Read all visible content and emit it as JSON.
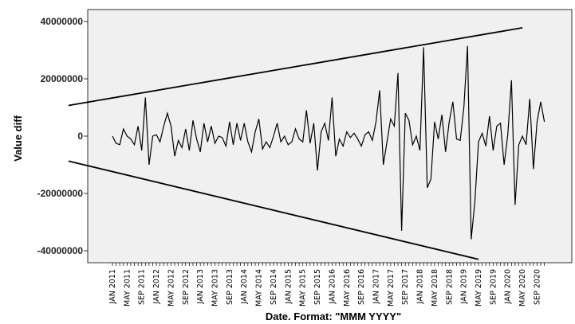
{
  "chart_data": {
    "type": "line",
    "title": "",
    "xlabel": "Date.  Format:  \"MMM YYYY\"",
    "ylabel": "Value diff",
    "ylim": [
      -45000000,
      45000000
    ],
    "yticks": [
      40000000,
      20000000,
      0,
      -20000000,
      -40000000
    ],
    "ytick_labels": [
      "40000000",
      "20000000",
      "0",
      "-20000000",
      "-40000000"
    ],
    "x_start": "JAN 2011",
    "x_tick_labels": [
      "JAN 2011",
      "MAY 2011",
      "SEP 2011",
      "JAN 2012",
      "MAY 2012",
      "SEP 2012",
      "JAN 2013",
      "MAY 2013",
      "SEP 2013",
      "JAN 2014",
      "MAY 2014",
      "SEP 2014",
      "JAN 2015",
      "MAY 2015",
      "SEP 2015",
      "JAN 2016",
      "MAY 2016",
      "SEP 2016",
      "JAN 2017",
      "MAY 2017",
      "SEP 2017",
      "JAN 2018",
      "MAY 2018",
      "SEP 2018",
      "JAN 2019",
      "MAY 2019",
      "SEP 2019",
      "JAN 2020",
      "MAY 2020",
      "SEP 2020"
    ],
    "grid": false,
    "legend": "none",
    "line_color": "#000000",
    "plot_background": "#f0f0f0",
    "series": [
      {
        "values": [
          0,
          -2500000,
          -3000000,
          2500000,
          0,
          -1000000,
          -3000000,
          3500000,
          -5000000,
          13500000,
          -10000000,
          0,
          500000,
          -2000000,
          3500000,
          8000000,
          3500000,
          -7000000,
          -1500000,
          -4000000,
          2500000,
          -5000000,
          5500000,
          -1000000,
          -5500000,
          4500000,
          -2000000,
          3500000,
          -2500000,
          0,
          -500000,
          -3500000,
          5000000,
          -3000000,
          4500000,
          -1500000,
          4500000,
          -2000000,
          -5500000,
          1500000,
          6000000,
          -4500000,
          -2000000,
          -4000000,
          0,
          4500000,
          -2000000,
          0,
          -3000000,
          -2000000,
          2500000,
          -1000000,
          -2000000,
          9000000,
          -2500000,
          4500000,
          -12000000,
          1500000,
          4500000,
          -1500000,
          13500000,
          -7000000,
          -1000000,
          -3500000,
          1500000,
          -500000,
          1000000,
          -1000000,
          -3500000,
          500000,
          1500000,
          -1500000,
          5000000,
          16000000,
          -10000000,
          -2000000,
          6000000,
          3500000,
          22000000,
          -33000000,
          8000000,
          5500000,
          -3000000,
          0,
          -5000000,
          31000000,
          -18000000,
          -15000000,
          5000000,
          -1000000,
          7500000,
          -5500000,
          5000000,
          12000000,
          -1000000,
          -1500000,
          10000000,
          31500000,
          -36000000,
          -23000000,
          -2000000,
          1000000,
          -3500000,
          7000000,
          -5000000,
          3500000,
          4500000,
          -10000000,
          500000,
          19500000,
          -24000000,
          -3000000,
          0,
          -3000000,
          13000000,
          -11500000,
          5000000,
          12000000,
          5000000
        ]
      }
    ],
    "annotation_lines": [
      {
        "name": "upper envelope",
        "x": [
          "JAN 2010",
          "MAY 2020"
        ],
        "y": [
          10700000,
          37800000
        ]
      },
      {
        "name": "lower envelope",
        "x": [
          "JAN 2010",
          "MAY 2019"
        ],
        "y": [
          -8700000,
          -43000000
        ]
      }
    ]
  }
}
